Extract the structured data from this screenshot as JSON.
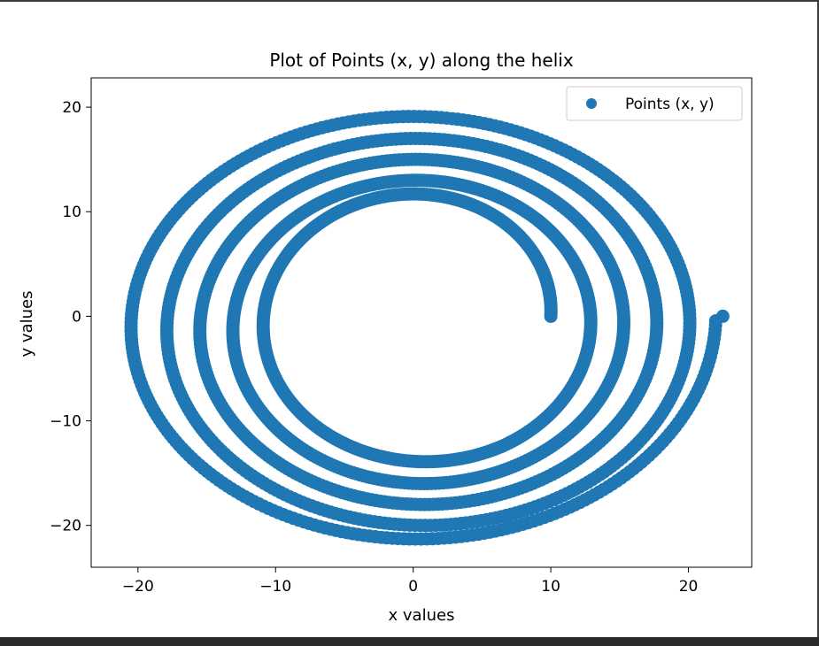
{
  "chart_data": {
    "type": "scatter",
    "title": "Plot of Points (x, y) along the helix",
    "xlabel": "x values",
    "ylabel": "y values",
    "xlim": [
      -23.4,
      24.6
    ],
    "ylim": [
      -24.0,
      22.8
    ],
    "xticks": [
      -20,
      -10,
      0,
      10,
      20
    ],
    "xtick_labels": [
      "−20",
      "−10",
      "0",
      "10",
      "20"
    ],
    "yticks": [
      -20,
      -10,
      0,
      10,
      20
    ],
    "ytick_labels": [
      "−20",
      "−10",
      "0",
      "10",
      "20"
    ],
    "grid": false,
    "legend": {
      "position": "top-right",
      "entries": [
        "Points (x, y)"
      ]
    },
    "colors": {
      "series": "#1f77b4",
      "axes": "#000000",
      "background": "#ffffff"
    },
    "series": [
      {
        "name": "Points (x, y)",
        "marker": "circle",
        "shape": "spiral",
        "start": {
          "x": 10.0,
          "y": 0.0
        },
        "end": {
          "x": 22.5,
          "y": 0.0
        },
        "turns": 5,
        "x_center": 0.5,
        "y_center": -1.0,
        "x_radius_range": [
          10.0,
          22.0
        ],
        "y_radius_range": [
          11.5,
          21.5
        ],
        "samples": 1600
      }
    ]
  }
}
